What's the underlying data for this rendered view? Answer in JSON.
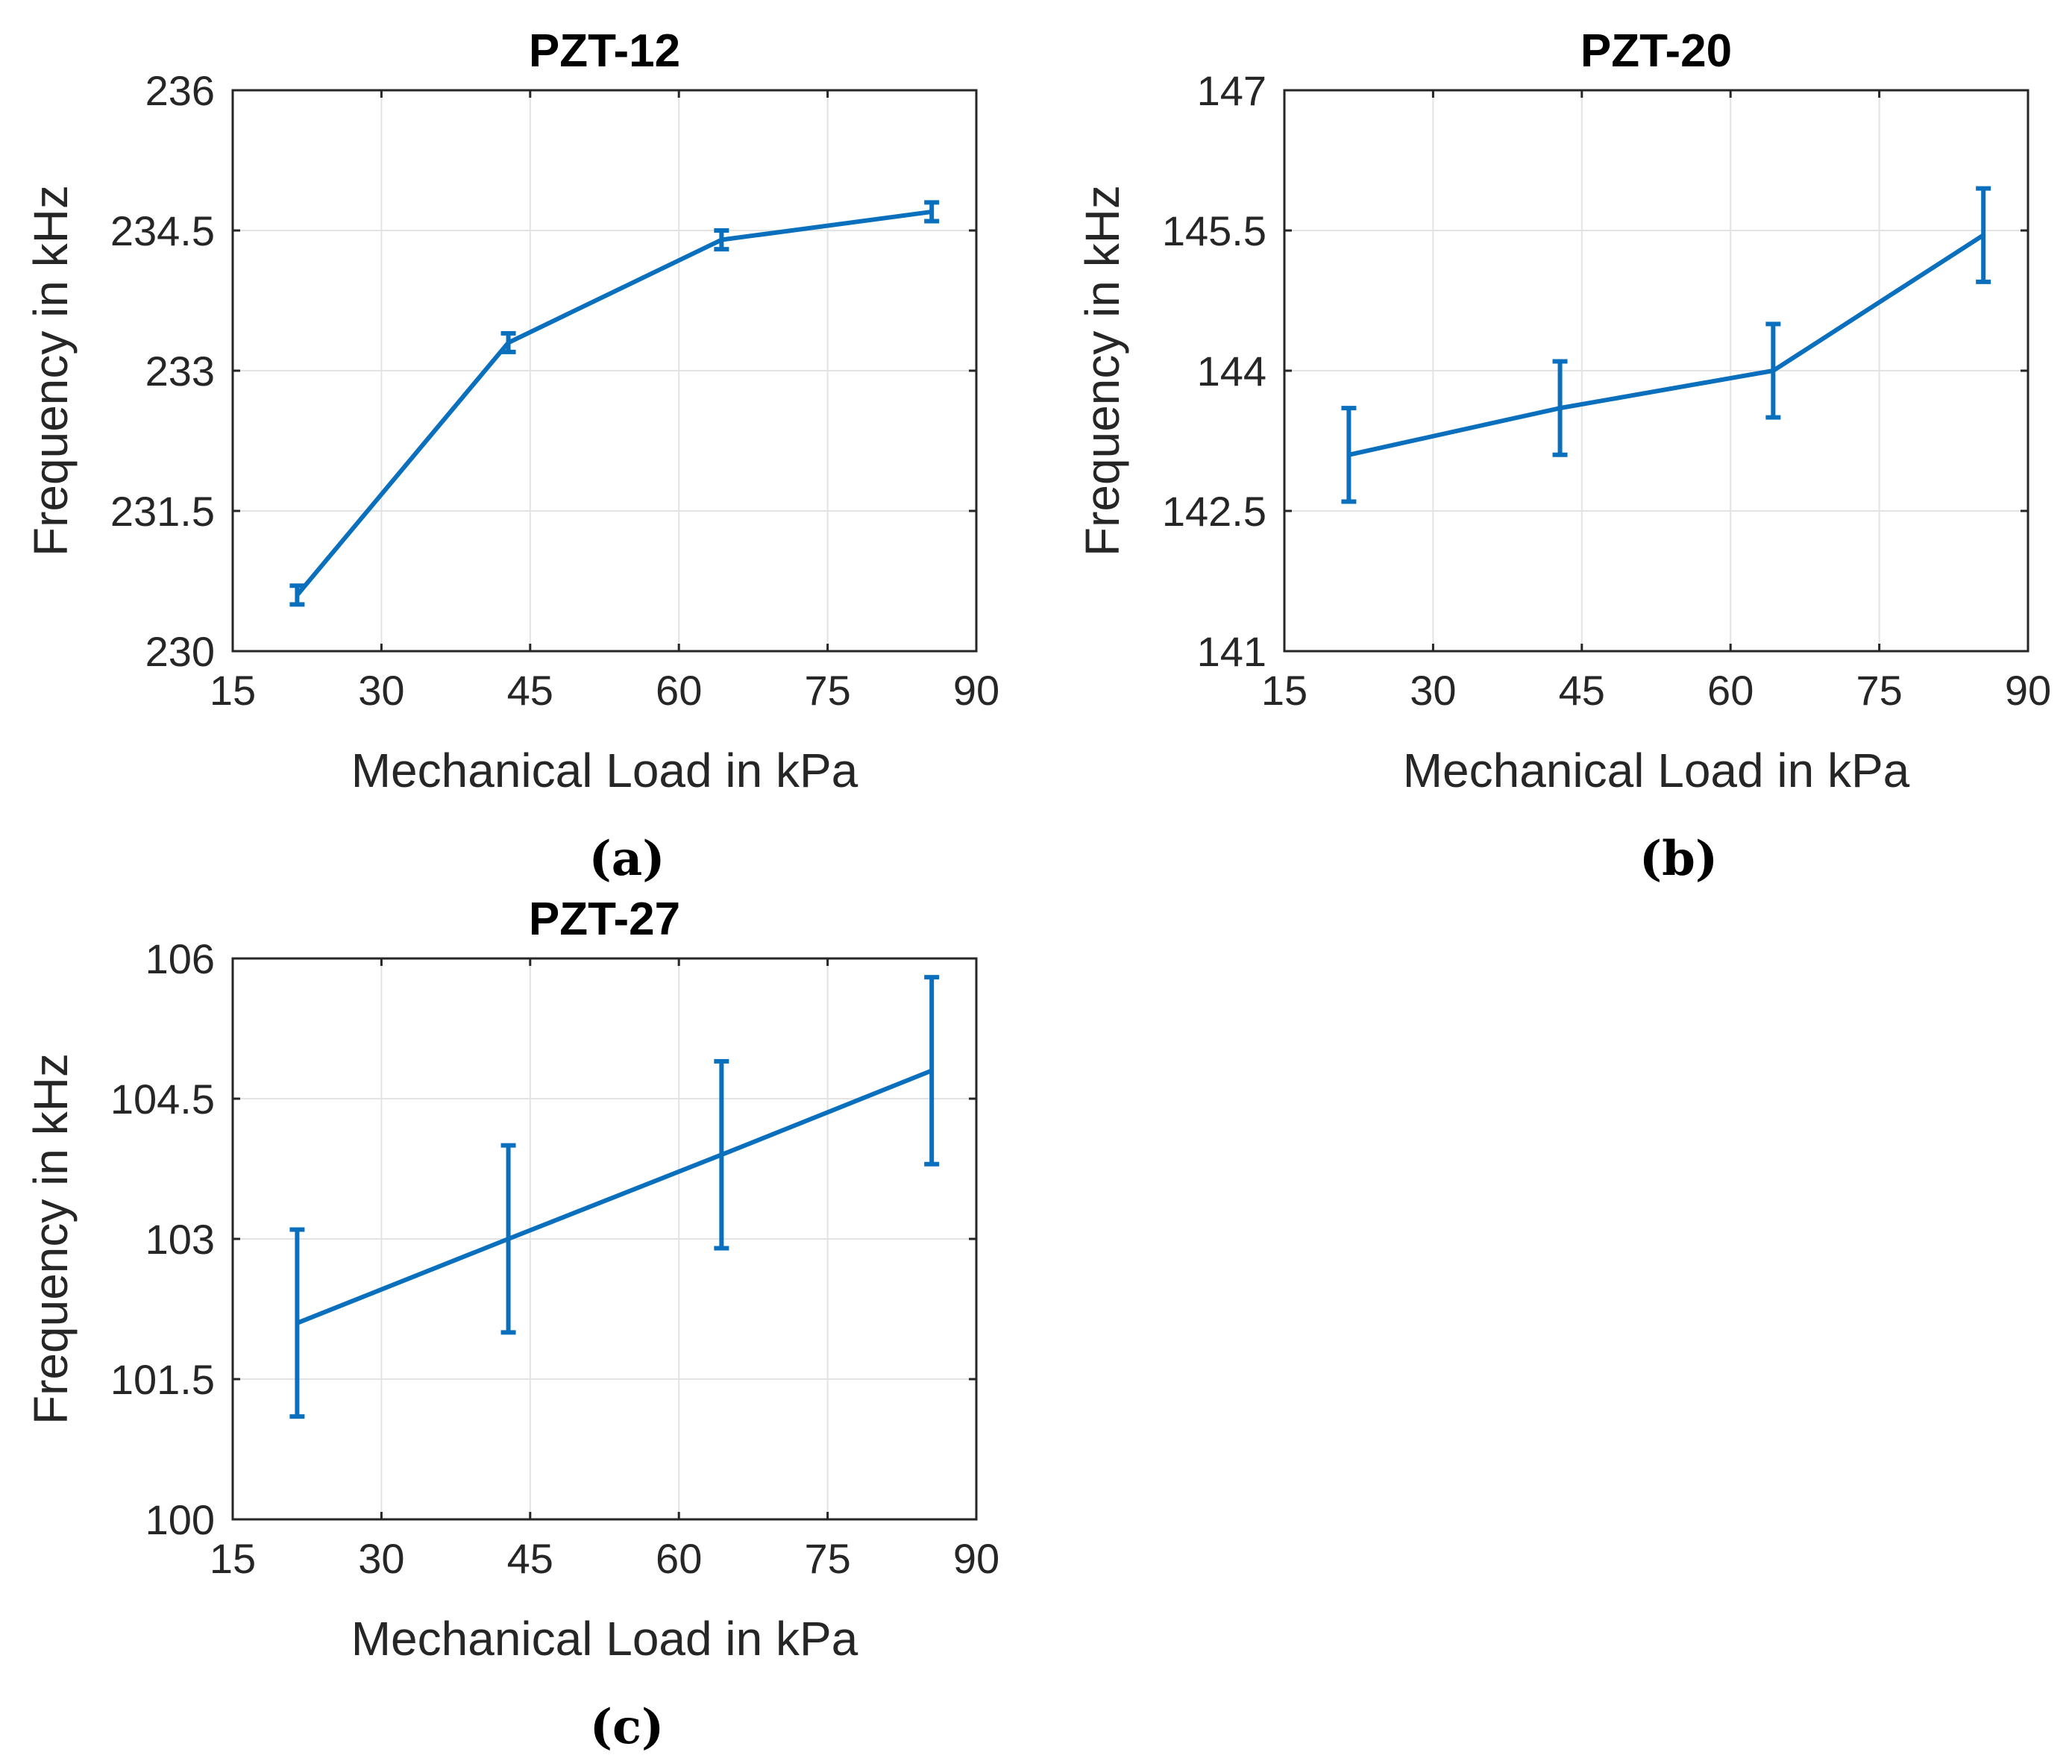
{
  "chart_data": [
    {
      "type": "line",
      "title": "PZT-12",
      "panel_label": "(a)",
      "xlabel": "Mechanical Load in kPa",
      "ylabel": "Frequency in kHz",
      "xlim": [
        15,
        90
      ],
      "ylim": [
        230,
        236
      ],
      "xticks": [
        15,
        30,
        45,
        60,
        75,
        90
      ],
      "yticks": [
        230,
        231.5,
        233,
        234.5,
        236
      ],
      "ytick_labels": [
        "230",
        "231.5",
        "233",
        "234.5",
        "236"
      ],
      "grid": true,
      "x": [
        21.5,
        42.8,
        64.3,
        85.5
      ],
      "y": [
        230.6,
        233.3,
        234.4,
        234.7
      ],
      "err": [
        0.1,
        0.1,
        0.1,
        0.1
      ],
      "color": "#0a6fbd"
    },
    {
      "type": "line",
      "title": "PZT-20",
      "panel_label": "(b)",
      "xlabel": "Mechanical Load in kPa",
      "ylabel": "Frequency in kHz",
      "xlim": [
        15,
        90
      ],
      "ylim": [
        141,
        147
      ],
      "xticks": [
        15,
        30,
        45,
        60,
        75,
        90
      ],
      "yticks": [
        141,
        142.5,
        144,
        145.5,
        147
      ],
      "ytick_labels": [
        "141",
        "142.5",
        "144",
        "145.5",
        "147"
      ],
      "grid": true,
      "x": [
        21.5,
        42.8,
        64.3,
        85.5
      ],
      "y": [
        143.1,
        143.6,
        144.0,
        145.45
      ],
      "err": [
        0.5,
        0.5,
        0.5,
        0.5
      ],
      "color": "#0a6fbd"
    },
    {
      "type": "line",
      "title": "PZT-27",
      "panel_label": "(c)",
      "xlabel": "Mechanical Load in kPa",
      "ylabel": "Frequency in kHz",
      "xlim": [
        15,
        90
      ],
      "ylim": [
        100,
        106
      ],
      "xticks": [
        15,
        30,
        45,
        60,
        75,
        90
      ],
      "yticks": [
        100,
        101.5,
        103,
        104.5,
        106
      ],
      "ytick_labels": [
        "100",
        "101.5",
        "103",
        "104.5",
        "106"
      ],
      "grid": true,
      "x": [
        21.5,
        42.8,
        64.3,
        85.5
      ],
      "y": [
        102.1,
        103.0,
        103.9,
        104.8
      ],
      "err": [
        1.0,
        1.0,
        1.0,
        1.0
      ],
      "color": "#0a6fbd"
    }
  ]
}
